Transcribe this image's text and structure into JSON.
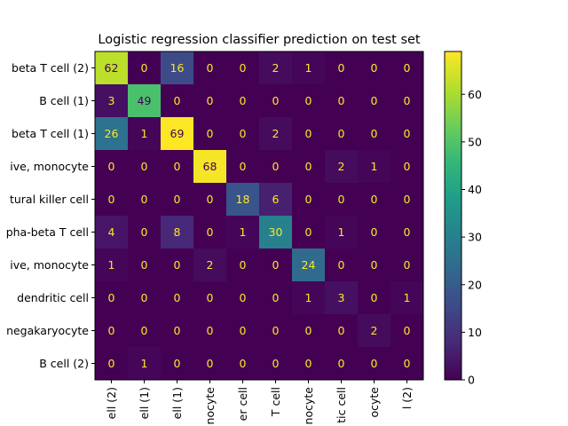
{
  "chart_data": {
    "type": "heatmap",
    "title": "Logistic regression classifier prediction on test set",
    "xlabel": "",
    "ylabel": "",
    "row_labels": [
      "beta T cell (2)",
      "B cell (1)",
      "beta T cell (1)",
      "ive, monocyte",
      "tural killer cell",
      "pha-beta T cell",
      "ive, monocyte",
      "dendritic cell",
      "negakaryocyte",
      "B cell (2)"
    ],
    "col_labels": [
      "ell (2)",
      "ell (1)",
      "ell (1)",
      "nocyte",
      "er cell",
      "T cell",
      "nocyte",
      "tic cell",
      "ocyte",
      "l (2)"
    ],
    "values": [
      [
        62,
        0,
        16,
        0,
        0,
        2,
        1,
        0,
        0,
        0
      ],
      [
        3,
        49,
        0,
        0,
        0,
        0,
        0,
        0,
        0,
        0
      ],
      [
        26,
        1,
        69,
        0,
        0,
        2,
        0,
        0,
        0,
        0
      ],
      [
        0,
        0,
        0,
        68,
        0,
        0,
        0,
        2,
        1,
        0
      ],
      [
        0,
        0,
        0,
        0,
        18,
        6,
        0,
        0,
        0,
        0
      ],
      [
        4,
        0,
        8,
        0,
        1,
        30,
        0,
        1,
        0,
        0
      ],
      [
        1,
        0,
        0,
        2,
        0,
        0,
        24,
        0,
        0,
        0
      ],
      [
        0,
        0,
        0,
        0,
        0,
        0,
        1,
        3,
        0,
        1
      ],
      [
        0,
        0,
        0,
        0,
        0,
        0,
        0,
        0,
        2,
        0
      ],
      [
        0,
        1,
        0,
        0,
        0,
        0,
        0,
        0,
        0,
        0
      ]
    ],
    "colorbar": {
      "colormap": "viridis",
      "range": [
        0,
        69
      ],
      "ticks": [
        0,
        10,
        20,
        30,
        40,
        50,
        60
      ]
    },
    "text_color_light": "#fde725",
    "text_color_dark": "#440154"
  }
}
